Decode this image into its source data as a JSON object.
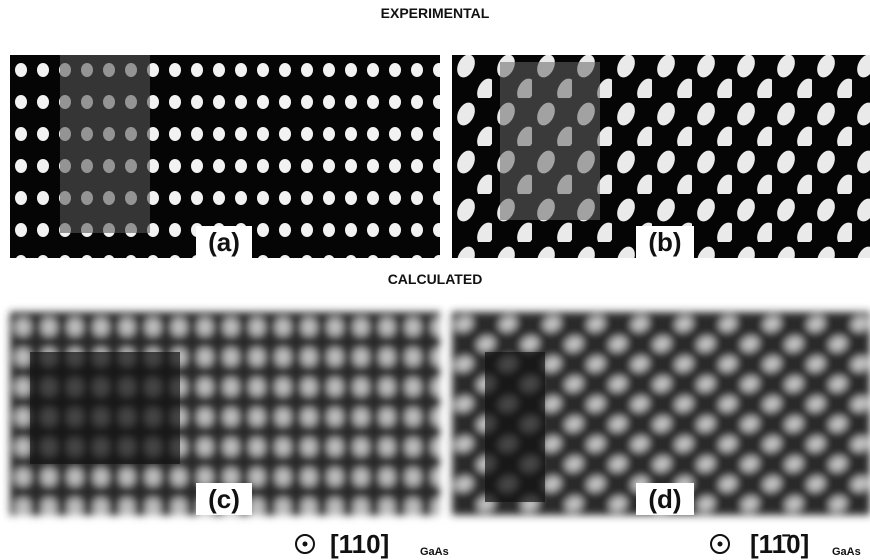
{
  "headings": {
    "experimental": "EXPERIMENTAL",
    "calculated": "CALCULATED"
  },
  "panels": [
    {
      "label": "(a)"
    },
    {
      "label": "(b)"
    },
    {
      "label": "(c)"
    },
    {
      "label": "(d)"
    }
  ],
  "orientations": [
    {
      "direction": "[110]",
      "subscript": "GaAs"
    },
    {
      "direction": "[11̄0]",
      "subscript": "GaAs"
    }
  ]
}
